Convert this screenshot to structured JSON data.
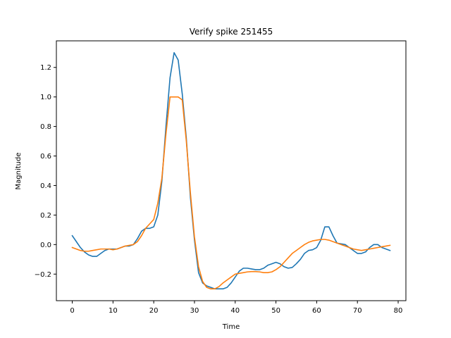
{
  "chart_data": {
    "type": "line",
    "title": "Verify spike 251455",
    "xlabel": "Time",
    "ylabel": "Magnitude",
    "xlim": [
      -3.9,
      81.9
    ],
    "ylim": [
      -0.38,
      1.38
    ],
    "xticks": [
      0,
      10,
      20,
      30,
      40,
      50,
      60,
      70,
      80
    ],
    "yticks": [
      -0.2,
      0.0,
      0.2,
      0.4,
      0.6,
      0.8,
      1.0,
      1.2
    ],
    "grid": false,
    "legend": "none",
    "series": [
      {
        "color": "#1f77b4",
        "x": [
          0,
          1,
          2,
          3,
          4,
          5,
          6,
          7,
          8,
          9,
          10,
          11,
          12,
          13,
          14,
          15,
          16,
          17,
          18,
          19,
          20,
          21,
          22,
          23,
          24,
          25,
          26,
          27,
          28,
          29,
          30,
          31,
          32,
          33,
          34,
          35,
          36,
          37,
          38,
          39,
          40,
          41,
          42,
          43,
          44,
          45,
          46,
          47,
          48,
          49,
          50,
          51,
          52,
          53,
          54,
          55,
          56,
          57,
          58,
          59,
          60,
          61,
          62,
          63,
          64,
          65,
          66,
          67,
          68,
          69,
          70,
          71,
          72,
          73,
          74,
          75,
          76,
          77,
          78
        ],
        "y": [
          0.06,
          0.02,
          -0.02,
          -0.05,
          -0.07,
          -0.08,
          -0.08,
          -0.06,
          -0.04,
          -0.03,
          -0.03,
          -0.03,
          -0.02,
          -0.01,
          -0.01,
          0.0,
          0.04,
          0.09,
          0.11,
          0.11,
          0.12,
          0.2,
          0.43,
          0.8,
          1.13,
          1.3,
          1.25,
          1.02,
          0.72,
          0.32,
          0.03,
          -0.19,
          -0.26,
          -0.28,
          -0.29,
          -0.3,
          -0.3,
          -0.3,
          -0.29,
          -0.26,
          -0.22,
          -0.18,
          -0.16,
          -0.16,
          -0.165,
          -0.17,
          -0.17,
          -0.16,
          -0.14,
          -0.13,
          -0.12,
          -0.13,
          -0.15,
          -0.16,
          -0.155,
          -0.13,
          -0.1,
          -0.06,
          -0.04,
          -0.035,
          -0.02,
          0.03,
          0.12,
          0.12,
          0.06,
          0.01,
          0.005,
          0.0,
          -0.02,
          -0.04,
          -0.06,
          -0.06,
          -0.05,
          -0.02,
          0.0,
          0.0,
          -0.02,
          -0.03,
          -0.04
        ]
      },
      {
        "color": "#ff7f0e",
        "x": [
          0,
          1,
          2,
          3,
          4,
          5,
          6,
          7,
          8,
          9,
          10,
          11,
          12,
          13,
          14,
          15,
          16,
          17,
          18,
          19,
          20,
          21,
          22,
          23,
          24,
          25,
          26,
          27,
          28,
          29,
          30,
          31,
          32,
          33,
          34,
          35,
          36,
          37,
          38,
          39,
          40,
          41,
          42,
          43,
          44,
          45,
          46,
          47,
          48,
          49,
          50,
          51,
          52,
          53,
          54,
          55,
          56,
          57,
          58,
          59,
          60,
          61,
          62,
          63,
          64,
          65,
          66,
          67,
          68,
          69,
          70,
          71,
          72,
          73,
          74,
          75,
          76,
          77,
          78
        ],
        "y": [
          -0.02,
          -0.03,
          -0.04,
          -0.045,
          -0.045,
          -0.04,
          -0.035,
          -0.03,
          -0.03,
          -0.03,
          -0.035,
          -0.03,
          -0.02,
          -0.01,
          -0.005,
          0.0,
          0.02,
          0.06,
          0.11,
          0.14,
          0.17,
          0.28,
          0.45,
          0.75,
          1.0,
          1.0,
          1.0,
          0.98,
          0.7,
          0.35,
          0.05,
          -0.15,
          -0.25,
          -0.29,
          -0.3,
          -0.3,
          -0.285,
          -0.26,
          -0.24,
          -0.22,
          -0.2,
          -0.195,
          -0.19,
          -0.185,
          -0.183,
          -0.183,
          -0.185,
          -0.19,
          -0.19,
          -0.185,
          -0.17,
          -0.15,
          -0.12,
          -0.09,
          -0.06,
          -0.04,
          -0.02,
          0.0,
          0.015,
          0.025,
          0.03,
          0.035,
          0.035,
          0.03,
          0.02,
          0.01,
          0.0,
          -0.01,
          -0.02,
          -0.03,
          -0.035,
          -0.04,
          -0.035,
          -0.03,
          -0.025,
          -0.02,
          -0.015,
          -0.01,
          -0.005
        ]
      }
    ]
  }
}
